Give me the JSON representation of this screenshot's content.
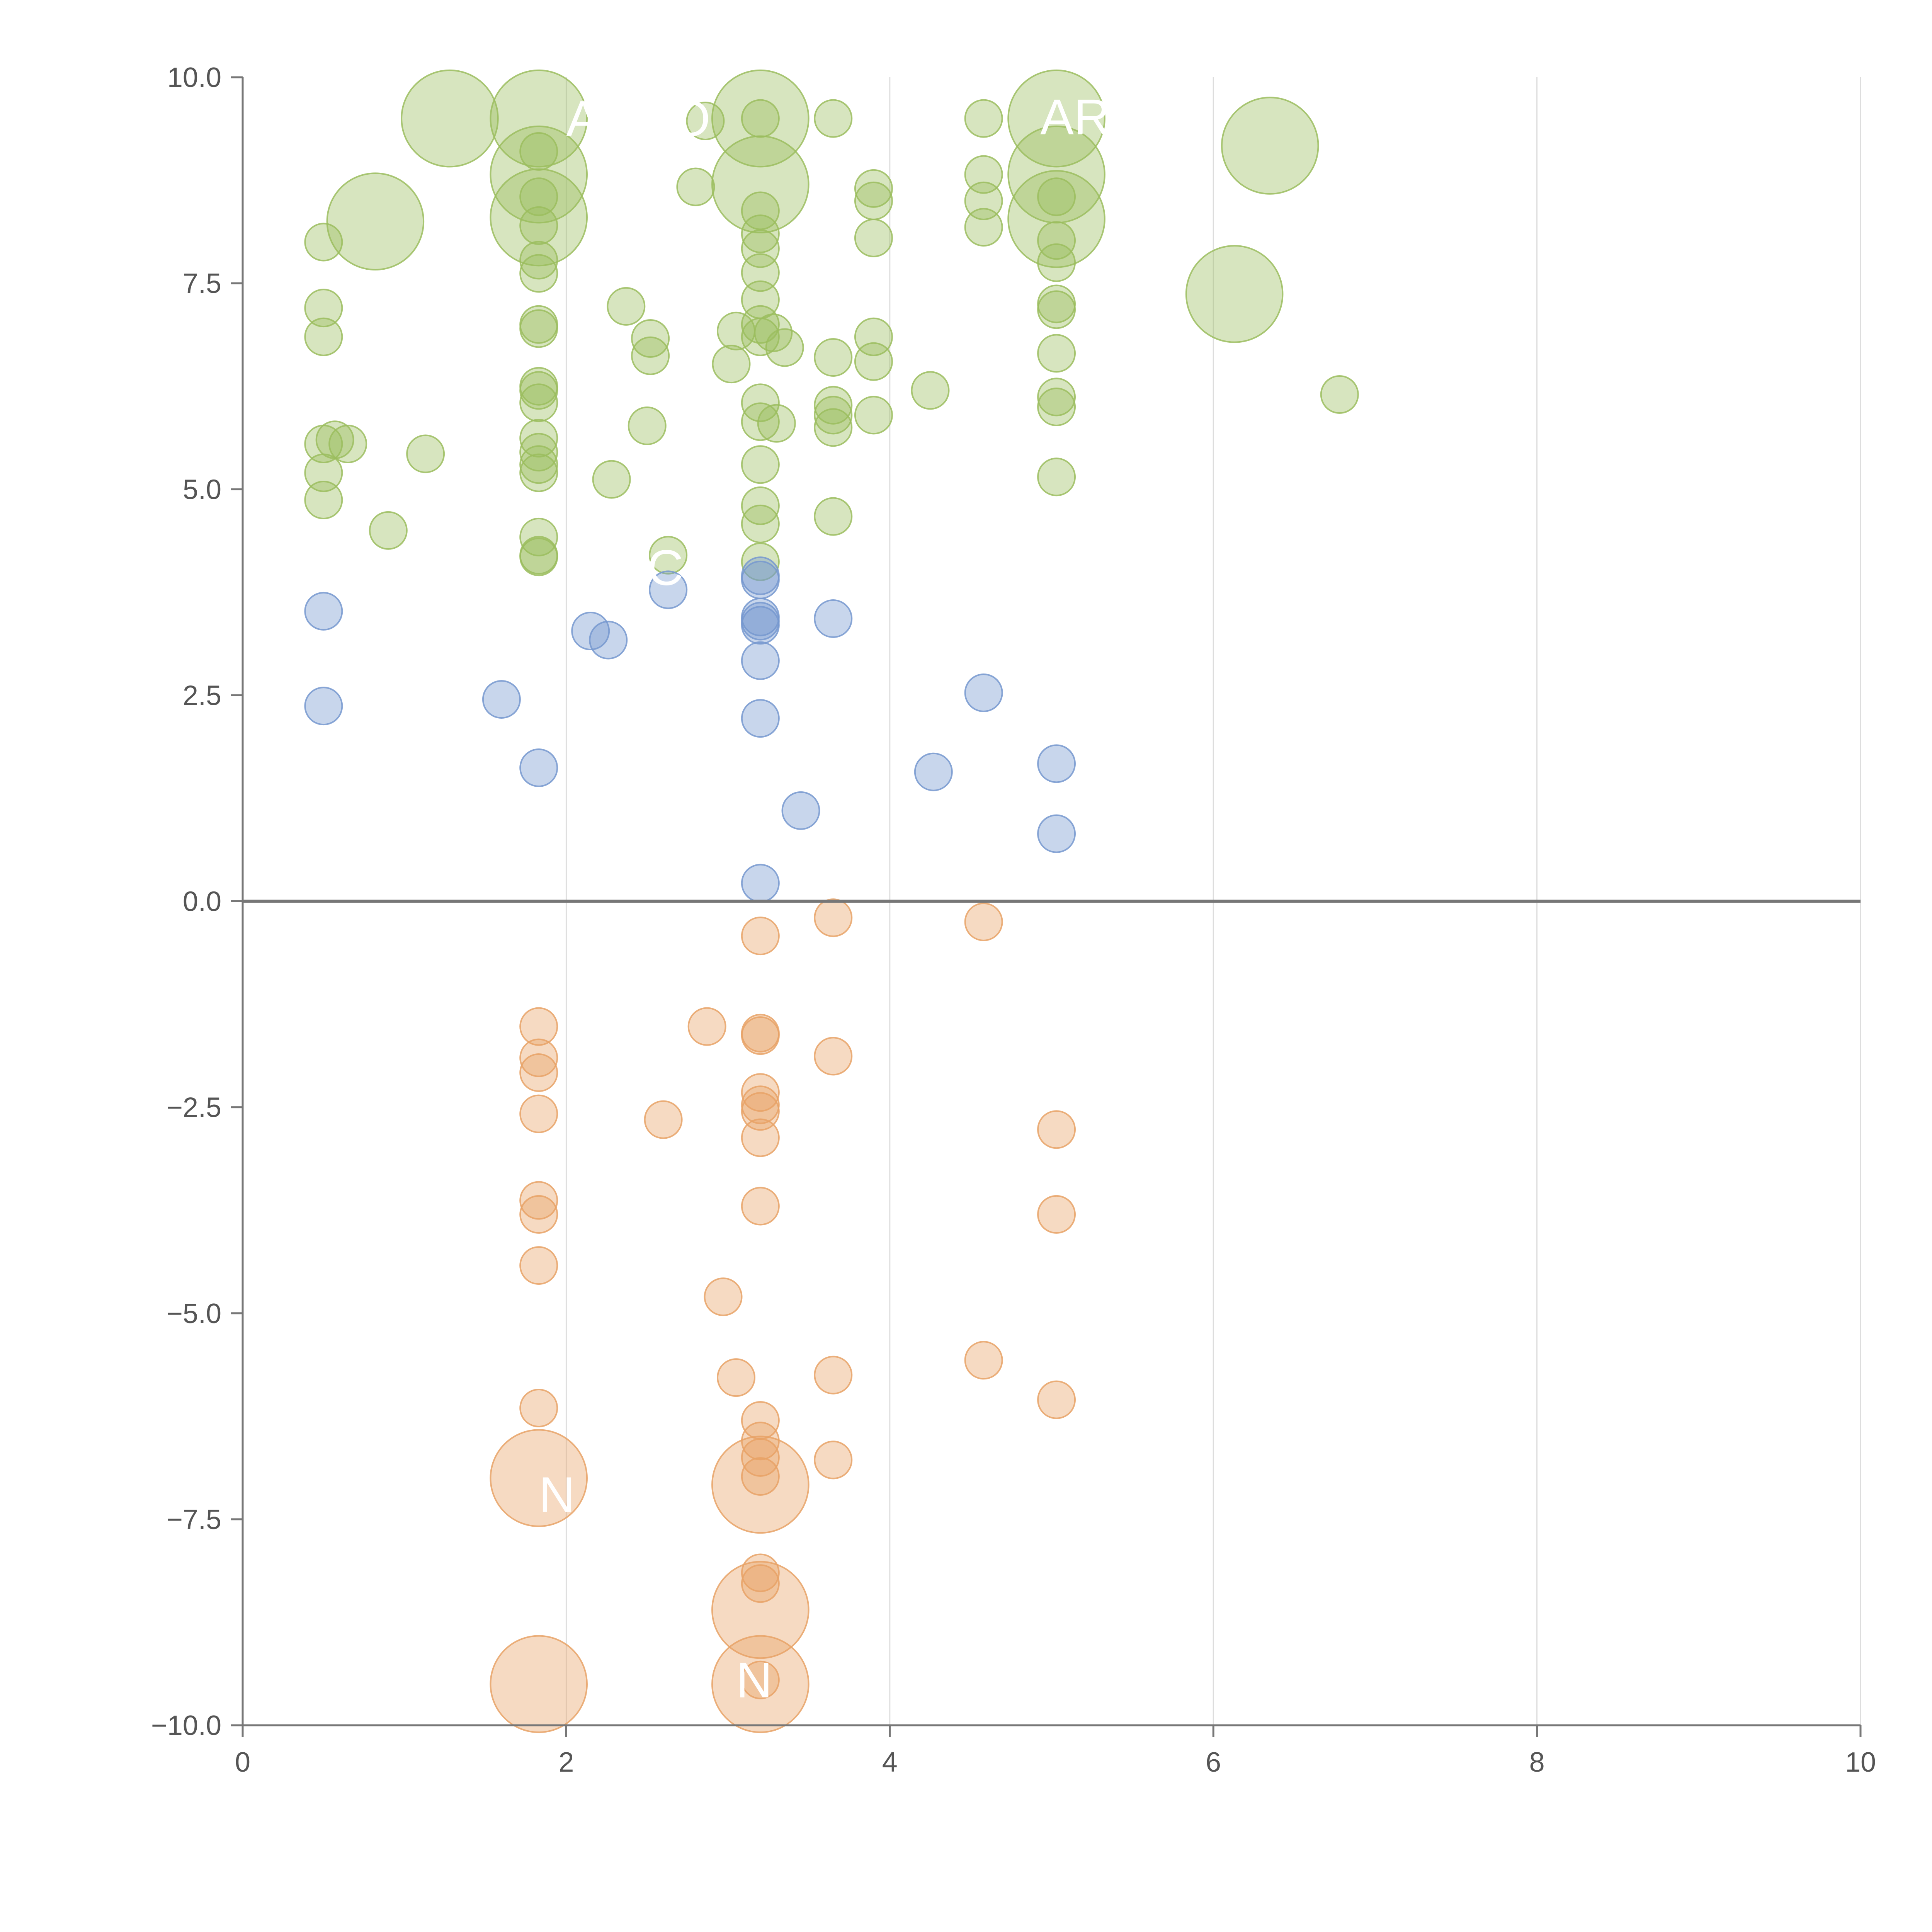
{
  "chart_data": {
    "type": "scatter",
    "title": "",
    "xlabel": "",
    "ylabel": "",
    "xlim": [
      0,
      10
    ],
    "ylim": [
      -10,
      10
    ],
    "grid": "vertical",
    "x_ticks": [
      0,
      2,
      4,
      6,
      8,
      10
    ],
    "y_ticks": [
      10,
      7.5,
      5,
      2.5,
      0,
      -2.5,
      -5,
      -7.5,
      -10
    ],
    "x_tick_labels": [
      "0",
      "2",
      "4",
      "6",
      "8",
      "10"
    ],
    "y_tick_labels": [
      "10.0",
      "7.5",
      "5.0",
      "2.5",
      "0.0",
      "−2.5",
      "−5.0",
      "−7.5",
      "−10.0"
    ],
    "colors": {
      "green": "#9bbd5e",
      "blue": "#7598cf",
      "orange": "#e8a266",
      "grid": "#dddddd",
      "axis": "#777777",
      "zero_line": "#777777"
    },
    "series": [
      {
        "name": "green",
        "color": "#9bbd5e",
        "points": [
          [
            0.5,
            8.0,
            1
          ],
          [
            0.5,
            7.2,
            1
          ],
          [
            0.5,
            6.85,
            1
          ],
          [
            0.5,
            5.55,
            1
          ],
          [
            0.5,
            5.2,
            1
          ],
          [
            0.5,
            4.87,
            1
          ],
          [
            0.57,
            5.6,
            1
          ],
          [
            0.65,
            5.55,
            1
          ],
          [
            0.82,
            8.25,
            2.6
          ],
          [
            0.9,
            4.5,
            1
          ],
          [
            1.13,
            5.43,
            1
          ],
          [
            1.28,
            9.5,
            2.6
          ],
          [
            1.83,
            9.5,
            2.6
          ],
          [
            1.83,
            8.82,
            2.6
          ],
          [
            1.83,
            8.3,
            2.6
          ],
          [
            1.83,
            9.1,
            1
          ],
          [
            1.83,
            8.55,
            1
          ],
          [
            1.83,
            8.2,
            1
          ],
          [
            1.83,
            7.78,
            1
          ],
          [
            1.83,
            7.62,
            1
          ],
          [
            1.83,
            7.0,
            1
          ],
          [
            1.83,
            6.95,
            1
          ],
          [
            1.83,
            6.25,
            1
          ],
          [
            1.83,
            6.2,
            1
          ],
          [
            1.83,
            6.05,
            1
          ],
          [
            1.83,
            5.62,
            1
          ],
          [
            1.83,
            5.45,
            1
          ],
          [
            1.83,
            5.3,
            1
          ],
          [
            1.83,
            5.2,
            1
          ],
          [
            1.83,
            4.42,
            1
          ],
          [
            1.83,
            4.2,
            1
          ],
          [
            1.83,
            4.18,
            1
          ],
          [
            2.28,
            5.12,
            1
          ],
          [
            2.37,
            7.22,
            1
          ],
          [
            2.5,
            5.77,
            1
          ],
          [
            2.52,
            6.83,
            1
          ],
          [
            2.52,
            6.62,
            1
          ],
          [
            2.63,
            4.2,
            1
          ],
          [
            2.8,
            8.67,
            1
          ],
          [
            2.86,
            9.47,
            1
          ],
          [
            3.02,
            6.52,
            1
          ],
          [
            3.05,
            6.92,
            1
          ],
          [
            3.2,
            9.5,
            2.6
          ],
          [
            3.2,
            8.7,
            2.6
          ],
          [
            3.2,
            9.5,
            1
          ],
          [
            3.2,
            8.38,
            1
          ],
          [
            3.2,
            8.1,
            1
          ],
          [
            3.2,
            7.92,
            1
          ],
          [
            3.2,
            7.63,
            1
          ],
          [
            3.2,
            7.3,
            1
          ],
          [
            3.2,
            7.0,
            1
          ],
          [
            3.2,
            6.85,
            1
          ],
          [
            3.2,
            6.05,
            1
          ],
          [
            3.2,
            5.82,
            1
          ],
          [
            3.2,
            5.3,
            1
          ],
          [
            3.2,
            4.8,
            1
          ],
          [
            3.2,
            4.58,
            1
          ],
          [
            3.2,
            4.12,
            1
          ],
          [
            3.28,
            6.9,
            1
          ],
          [
            3.3,
            5.8,
            1
          ],
          [
            3.35,
            6.72,
            1
          ],
          [
            3.65,
            9.5,
            1
          ],
          [
            3.65,
            6.6,
            1
          ],
          [
            3.65,
            6.02,
            1
          ],
          [
            3.65,
            5.9,
            1
          ],
          [
            3.65,
            5.75,
            1
          ],
          [
            3.65,
            4.67,
            1
          ],
          [
            3.9,
            8.65,
            1
          ],
          [
            3.9,
            8.5,
            1
          ],
          [
            3.9,
            8.05,
            1
          ],
          [
            3.9,
            6.85,
            1
          ],
          [
            3.9,
            6.55,
            1
          ],
          [
            3.9,
            5.9,
            1
          ],
          [
            4.25,
            6.2,
            1
          ],
          [
            4.58,
            9.5,
            1
          ],
          [
            4.58,
            8.82,
            1
          ],
          [
            4.58,
            8.5,
            1
          ],
          [
            4.58,
            8.18,
            1
          ],
          [
            5.03,
            9.5,
            2.6
          ],
          [
            5.03,
            8.82,
            2.6
          ],
          [
            5.03,
            8.28,
            2.6
          ],
          [
            5.03,
            8.55,
            1
          ],
          [
            5.03,
            8.02,
            1
          ],
          [
            5.03,
            7.75,
            1
          ],
          [
            5.03,
            7.25,
            1
          ],
          [
            5.03,
            7.18,
            1
          ],
          [
            5.03,
            6.65,
            1
          ],
          [
            5.03,
            6.12,
            1
          ],
          [
            5.03,
            6.0,
            1
          ],
          [
            5.03,
            5.15,
            1
          ],
          [
            6.13,
            7.37,
            2.6
          ],
          [
            6.35,
            9.17,
            2.6
          ],
          [
            6.78,
            6.15,
            1
          ]
        ]
      },
      {
        "name": "blue",
        "color": "#7598cf",
        "points": [
          [
            0.5,
            3.52,
            1
          ],
          [
            0.5,
            2.37,
            1
          ],
          [
            1.6,
            2.45,
            1
          ],
          [
            1.83,
            1.62,
            1
          ],
          [
            2.15,
            3.28,
            1
          ],
          [
            2.26,
            3.17,
            1
          ],
          [
            2.63,
            3.78,
            1
          ],
          [
            3.2,
            3.95,
            1
          ],
          [
            3.2,
            3.9,
            1
          ],
          [
            3.2,
            3.45,
            1
          ],
          [
            3.2,
            3.4,
            1
          ],
          [
            3.2,
            3.35,
            1
          ],
          [
            3.2,
            2.92,
            1
          ],
          [
            3.2,
            2.22,
            1
          ],
          [
            3.2,
            0.22,
            1
          ],
          [
            3.45,
            1.1,
            1
          ],
          [
            3.65,
            3.43,
            1
          ],
          [
            4.27,
            1.57,
            1
          ],
          [
            4.58,
            2.53,
            1
          ],
          [
            5.03,
            1.67,
            1
          ],
          [
            5.03,
            0.82,
            1
          ]
        ]
      },
      {
        "name": "orange",
        "color": "#e8a266",
        "points": [
          [
            1.83,
            -1.52,
            1
          ],
          [
            1.83,
            -1.9,
            1
          ],
          [
            1.83,
            -2.08,
            1
          ],
          [
            1.83,
            -2.58,
            1
          ],
          [
            1.83,
            -3.63,
            1
          ],
          [
            1.83,
            -3.8,
            1
          ],
          [
            1.83,
            -4.42,
            1
          ],
          [
            1.83,
            -6.15,
            1
          ],
          [
            1.83,
            -7.0,
            2.6
          ],
          [
            1.83,
            -9.5,
            2.6
          ],
          [
            2.6,
            -2.65,
            1
          ],
          [
            2.87,
            -1.52,
            1
          ],
          [
            2.97,
            -4.8,
            1
          ],
          [
            3.05,
            -5.78,
            1
          ],
          [
            3.2,
            -0.42,
            1
          ],
          [
            3.2,
            -1.6,
            1
          ],
          [
            3.2,
            -1.63,
            1
          ],
          [
            3.2,
            -2.32,
            1
          ],
          [
            3.2,
            -2.47,
            1
          ],
          [
            3.2,
            -2.55,
            1
          ],
          [
            3.2,
            -2.87,
            1
          ],
          [
            3.2,
            -3.7,
            1
          ],
          [
            3.2,
            -6.3,
            1
          ],
          [
            3.2,
            -6.55,
            1
          ],
          [
            3.2,
            -6.75,
            1
          ],
          [
            3.2,
            -6.98,
            1
          ],
          [
            3.2,
            -8.15,
            1
          ],
          [
            3.2,
            -8.28,
            1
          ],
          [
            3.2,
            -9.45,
            1
          ],
          [
            3.2,
            -7.08,
            2.6
          ],
          [
            3.2,
            -8.6,
            2.6
          ],
          [
            3.2,
            -9.5,
            2.6
          ],
          [
            3.65,
            -0.2,
            1
          ],
          [
            3.65,
            -1.88,
            1
          ],
          [
            3.65,
            -5.75,
            1
          ],
          [
            3.65,
            -6.78,
            1
          ],
          [
            4.58,
            -0.25,
            1
          ],
          [
            4.58,
            -5.57,
            1
          ],
          [
            5.03,
            -2.77,
            1
          ],
          [
            5.03,
            -3.8,
            1
          ],
          [
            5.03,
            -6.05,
            1
          ]
        ]
      }
    ],
    "annotations": [
      {
        "text": "AR",
        "x": 4.93,
        "y": 9.52
      },
      {
        "text": "N",
        "x": 1.83,
        "y": -7.2
      },
      {
        "text": "N",
        "x": 3.05,
        "y": -9.45
      },
      {
        "text": "C",
        "x": 2.5,
        "y": 4.05
      },
      {
        "text": "A",
        "x": 2.0,
        "y": 9.5
      },
      {
        "text": "O",
        "x": 2.65,
        "y": 9.5
      }
    ]
  }
}
